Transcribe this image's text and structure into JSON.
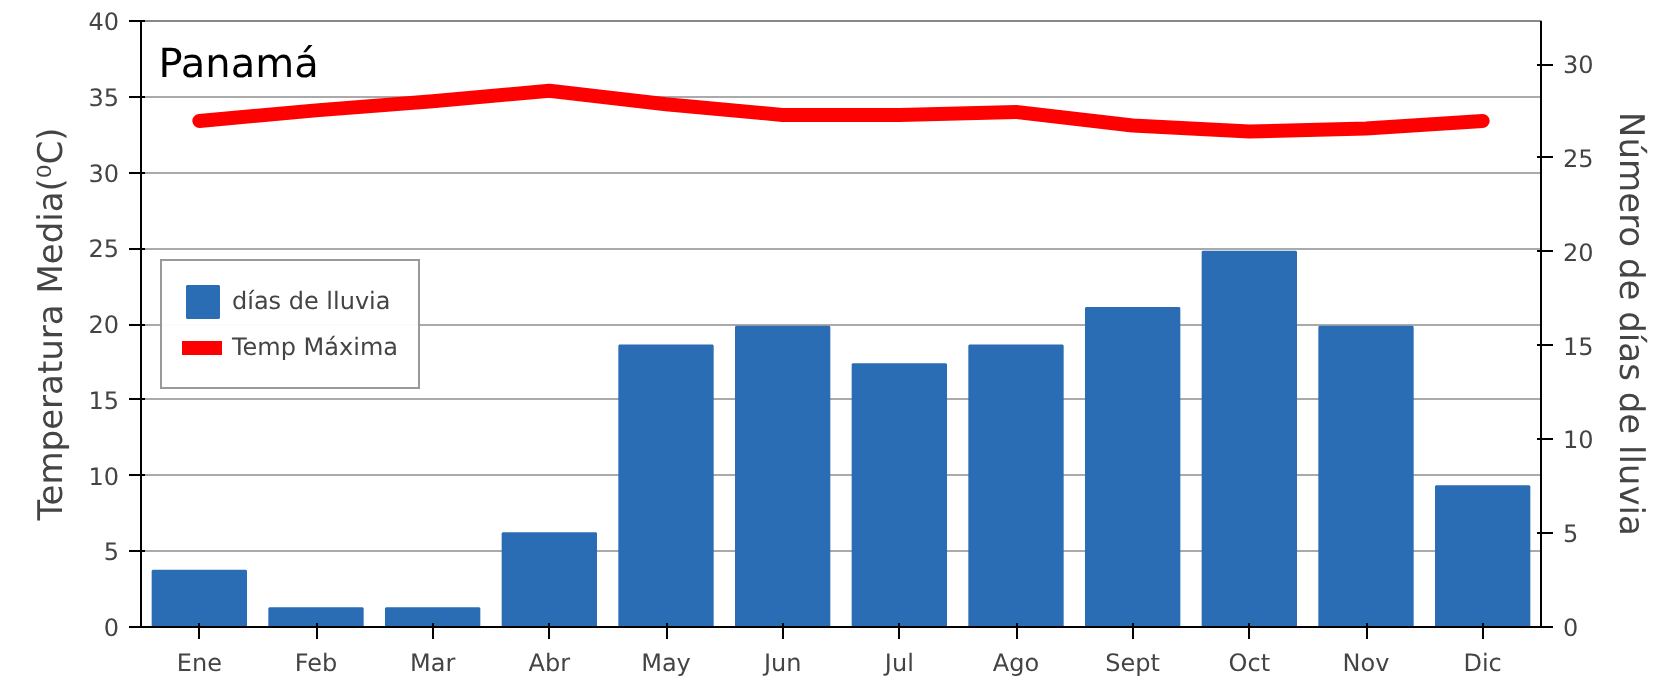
{
  "chart_data": {
    "type": "bar",
    "title": "Panamá",
    "ylabel": "Temperatura Media(⁰C)",
    "y2label": "Número de días de lluvia",
    "categories": [
      "Ene",
      "Feb",
      "Mar",
      "Abr",
      "May",
      "Jun",
      "Jul",
      "Ago",
      "Sept",
      "Oct",
      "Nov",
      "Dic"
    ],
    "series": [
      {
        "name": "días de lluvia",
        "axis": "y2",
        "color": "#2a6db5",
        "values": [
          3,
          1,
          1,
          5,
          15,
          16,
          14,
          15,
          17,
          20,
          16,
          7.5
        ]
      },
      {
        "name": "Temp Máxima",
        "type": "line",
        "color": "#ff0000",
        "values": [
          33.4,
          34.1,
          34.7,
          35.4,
          34.5,
          33.8,
          33.8,
          34,
          33.1,
          32.7,
          32.9,
          33.4
        ]
      }
    ],
    "ylim": [
      0,
      40
    ],
    "yticks": [
      0,
      5,
      10,
      15,
      20,
      25,
      30,
      35,
      40
    ],
    "y2lim": [
      0,
      32.3
    ],
    "y2ticks": [
      0,
      5,
      10,
      15,
      20,
      25,
      30
    ],
    "grid": "y",
    "legend": "left"
  }
}
